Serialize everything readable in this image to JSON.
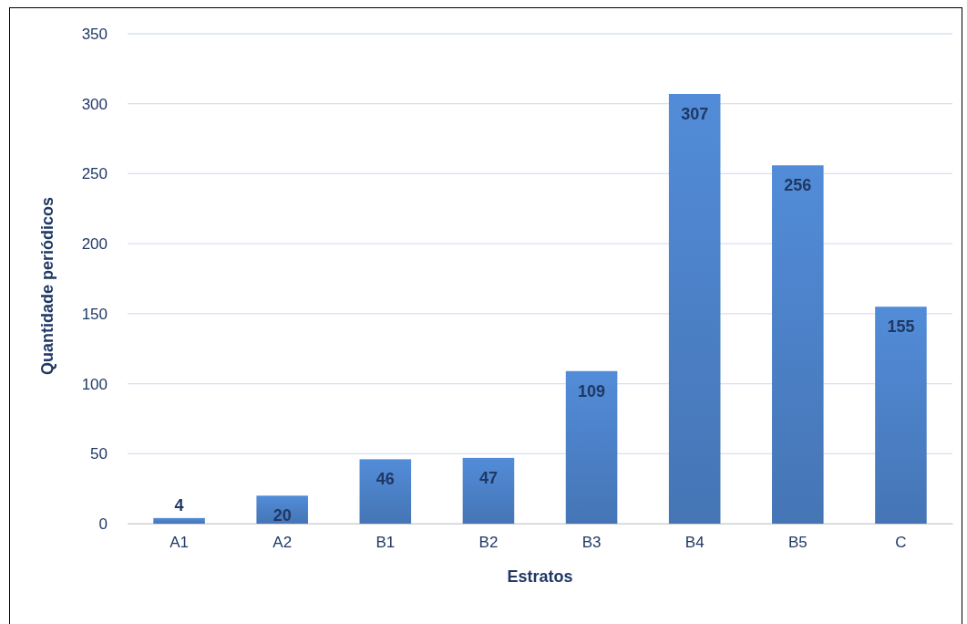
{
  "chart_data": {
    "type": "bar",
    "xlabel": "Estratos",
    "ylabel": "Quantidade periódicos",
    "categories": [
      "A1",
      "A2",
      "B1",
      "B2",
      "B3",
      "B4",
      "B5",
      "C"
    ],
    "values": [
      4,
      20,
      46,
      47,
      109,
      307,
      256,
      155
    ],
    "color": "#4a7ec2",
    "ylim": [
      0,
      350
    ],
    "yticks": [
      0,
      50,
      100,
      150,
      200,
      250,
      300,
      350
    ],
    "grid": "y",
    "data_labels": true
  }
}
